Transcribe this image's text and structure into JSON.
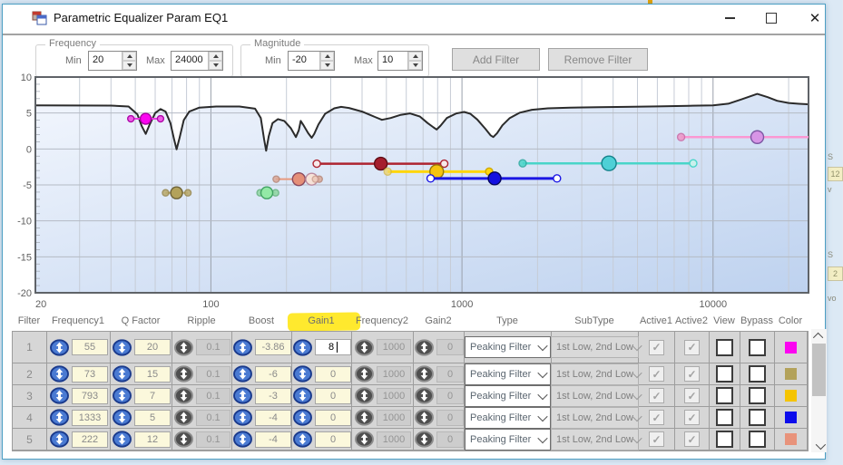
{
  "window": {
    "title": "Parametric Equalizer Param EQ1",
    "minimize_icon": "minimize",
    "maximize_icon": "maximize",
    "close_glyph": "✕"
  },
  "controls": {
    "frequency_group": {
      "label": "Frequency",
      "min_label": "Min",
      "min_value": "20",
      "max_label": "Max",
      "max_value": "24000"
    },
    "magnitude_group": {
      "label": "Magnitude",
      "min_label": "Min",
      "min_value": "-20",
      "max_label": "Max",
      "max_value": "10"
    },
    "add_filter_label": "Add Filter",
    "remove_filter_label": "Remove Filter"
  },
  "chart_data": {
    "type": "line",
    "x_scale": "log",
    "x_range": [
      20,
      24000
    ],
    "y_range": [
      -20,
      10
    ],
    "x_ticks": [
      20,
      100,
      1000,
      10000
    ],
    "y_ticks": [
      10,
      5,
      0,
      -5,
      -10,
      -15,
      -20
    ],
    "grid_minor_freqs": [
      30,
      40,
      50,
      60,
      70,
      80,
      90,
      200,
      300,
      400,
      500,
      600,
      700,
      800,
      900,
      2000,
      3000,
      4000,
      5000,
      6000,
      7000,
      8000,
      9000,
      20000
    ],
    "grid_major_freqs": [
      100,
      1000,
      10000
    ],
    "response_curve": [
      [
        20,
        6.05
      ],
      [
        40,
        6.03
      ],
      [
        47,
        5.9
      ],
      [
        51,
        4.8
      ],
      [
        53,
        3.2
      ],
      [
        55,
        2.1
      ],
      [
        57,
        3.4
      ],
      [
        60,
        5.0
      ],
      [
        63,
        5.55
      ],
      [
        66,
        5.2
      ],
      [
        69,
        3.6
      ],
      [
        71.5,
        1.2
      ],
      [
        73,
        -0.05
      ],
      [
        75,
        1.5
      ],
      [
        78,
        4.0
      ],
      [
        82,
        5.2
      ],
      [
        90,
        5.75
      ],
      [
        105,
        5.9
      ],
      [
        130,
        5.9
      ],
      [
        150,
        5.6
      ],
      [
        158,
        4.3
      ],
      [
        163,
        1.3
      ],
      [
        166,
        -0.25
      ],
      [
        170,
        1.8
      ],
      [
        176,
        3.6
      ],
      [
        185,
        4.15
      ],
      [
        196,
        3.9
      ],
      [
        208,
        2.9
      ],
      [
        218,
        1.65
      ],
      [
        224,
        2.6
      ],
      [
        228,
        3.9
      ],
      [
        233,
        3.4
      ],
      [
        244,
        2.2
      ],
      [
        252,
        1.55
      ],
      [
        258,
        2.1
      ],
      [
        268,
        3.4
      ],
      [
        285,
        4.9
      ],
      [
        310,
        5.65
      ],
      [
        330,
        5.85
      ],
      [
        355,
        5.7
      ],
      [
        400,
        5.2
      ],
      [
        450,
        4.45
      ],
      [
        480,
        4.05
      ],
      [
        520,
        4.3
      ],
      [
        570,
        4.75
      ],
      [
        620,
        4.95
      ],
      [
        680,
        4.5
      ],
      [
        730,
        3.6
      ],
      [
        770,
        3.0
      ],
      [
        793,
        2.7
      ],
      [
        820,
        3.2
      ],
      [
        870,
        4.3
      ],
      [
        950,
        4.95
      ],
      [
        1020,
        5.15
      ],
      [
        1080,
        4.9
      ],
      [
        1150,
        4.1
      ],
      [
        1240,
        2.8
      ],
      [
        1300,
        1.9
      ],
      [
        1333,
        1.65
      ],
      [
        1380,
        2.2
      ],
      [
        1450,
        3.3
      ],
      [
        1550,
        4.3
      ],
      [
        1700,
        5.05
      ],
      [
        1900,
        5.45
      ],
      [
        2200,
        5.65
      ],
      [
        2700,
        5.75
      ],
      [
        3500,
        5.8
      ],
      [
        4500,
        5.85
      ],
      [
        6000,
        5.92
      ],
      [
        8000,
        6.0
      ],
      [
        10000,
        6.05
      ],
      [
        11500,
        6.3
      ],
      [
        13000,
        6.9
      ],
      [
        15000,
        7.65
      ],
      [
        16500,
        7.2
      ],
      [
        18000,
        6.7
      ],
      [
        20000,
        6.4
      ],
      [
        22000,
        6.28
      ],
      [
        24000,
        6.2
      ]
    ],
    "filters": [
      {
        "name": "magenta-55hz",
        "line": "#e93ae3",
        "lw": 2,
        "db": 4.2,
        "f1": 48,
        "f2": 63,
        "points": [
          {
            "f": 48,
            "r": 3.5,
            "fill": "#ef5ce8",
            "stroke": "#ad09a8"
          },
          {
            "f": 63,
            "r": 3.5,
            "fill": "#ef5ce8",
            "stroke": "#ad09a8"
          },
          {
            "f": 55,
            "r": 6,
            "fill": "#fb05f0",
            "stroke": "#a800a0"
          }
        ]
      },
      {
        "name": "khaki-73hz",
        "line": "#bcac72",
        "lw": 2,
        "db": -6.1,
        "f1": 66,
        "f2": 81,
        "points": [
          {
            "f": 66,
            "r": 3.5,
            "fill": "#b9a96b",
            "stroke": "#95854a",
            "op": 0.85
          },
          {
            "f": 81,
            "r": 3.5,
            "fill": "#b9a96b",
            "stroke": "#95854a",
            "op": 0.85
          },
          {
            "f": 73,
            "r": 6.5,
            "fill": "#b3a25a",
            "stroke": "#6e6338"
          }
        ]
      },
      {
        "name": "green-167hz",
        "line": "#9fdcae",
        "lw": 2,
        "db": -6.1,
        "f1": 157,
        "f2": 181,
        "points": [
          {
            "f": 157,
            "r": 3.5,
            "fill": "#8fd6a2",
            "stroke": "#64b27c",
            "op": 0.85
          },
          {
            "f": 181,
            "r": 3.5,
            "fill": "#8fd6a2",
            "stroke": "#64b27c",
            "op": 0.85
          },
          {
            "f": 167,
            "r": 6.5,
            "fill": "#93e9a6",
            "stroke": "#41a263"
          }
        ]
      },
      {
        "name": "salmon-222hz",
        "line": "#e89a7f",
        "lw": 2,
        "db": -4.2,
        "f1": 182,
        "f2": 270,
        "points": [
          {
            "f": 182,
            "r": 3.5,
            "fill": "#dba491",
            "stroke": "#b4806e",
            "op": 0.8
          },
          {
            "f": 270,
            "r": 3.5,
            "fill": "#dba491",
            "stroke": "#b4806e",
            "op": 0.8
          },
          {
            "f": 224,
            "r": 7,
            "fill": "#e58f78",
            "stroke": "#8a4a5e"
          },
          {
            "f": 252,
            "r": 6.5,
            "fill": "#f6e2d8",
            "stroke": "#bb8ba0"
          },
          {
            "f": 261,
            "r": 3.5,
            "fill": "#ecc3b2",
            "stroke": "#c49583",
            "op": 0.7
          }
        ]
      },
      {
        "name": "darkred-475hz",
        "line": "#ae2430",
        "lw": 2.5,
        "db": -2.05,
        "f1": 264,
        "f2": 850,
        "points": [
          {
            "f": 264,
            "r": 4,
            "fill": "#f7eaea",
            "stroke": "#ae2430"
          },
          {
            "f": 850,
            "r": 4,
            "fill": "#f7eaea",
            "stroke": "#ae2430"
          },
          {
            "f": 475,
            "r": 7,
            "fill": "#a51e2d",
            "stroke": "#5f0e16"
          }
        ]
      },
      {
        "name": "gold-793hz",
        "line": "#ffd60d",
        "lw": 3,
        "db": -3.15,
        "f1": 506,
        "f2": 1283,
        "points": [
          {
            "f": 506,
            "r": 4,
            "fill": "#f0d465",
            "stroke": "#d4b63e",
            "op": 0.75
          },
          {
            "f": 1283,
            "r": 4,
            "fill": "#ffd60d",
            "stroke": "#cfa900"
          },
          {
            "f": 793,
            "r": 7.5,
            "fill": "#f5c411",
            "stroke": "#96790a"
          }
        ]
      },
      {
        "name": "blue-1333hz",
        "line": "#1b16e4",
        "lw": 3,
        "db": -4.1,
        "f1": 750,
        "f2": 2390,
        "points": [
          {
            "f": 750,
            "r": 4,
            "fill": "#ffffff",
            "stroke": "#1b16e4"
          },
          {
            "f": 2390,
            "r": 4,
            "fill": "#ffffff",
            "stroke": "#1b16e4"
          },
          {
            "f": 1349,
            "r": 7,
            "fill": "#1410e0",
            "stroke": "#05055e"
          }
        ]
      },
      {
        "name": "turquoise-3850hz",
        "line": "#49d5c9",
        "lw": 2.5,
        "db": -2.0,
        "f1": 1745,
        "f2": 8340,
        "points": [
          {
            "f": 1745,
            "r": 4,
            "fill": "#49d5c9",
            "stroke": "#2aa89d",
            "op": 0.85
          },
          {
            "f": 8340,
            "r": 4,
            "fill": "#c9f0ec",
            "stroke": "#49d5c9"
          },
          {
            "f": 3850,
            "r": 8,
            "fill": "#4ed0d6",
            "stroke": "#15828c"
          }
        ]
      },
      {
        "name": "orchid-15khz",
        "line": "#fb98d2",
        "lw": 2.5,
        "db": 1.65,
        "f1": 7460,
        "f2": 24000,
        "points": [
          {
            "f": 7460,
            "r": 4,
            "fill": "#ee97c8",
            "stroke": "#cb6ba6",
            "op": 0.85
          },
          {
            "f": 15000,
            "r": 7,
            "fill": "#d795e6",
            "stroke": "#7e58a4"
          }
        ]
      }
    ]
  },
  "table": {
    "headers": [
      "Filter",
      "Frequency1",
      "Q Factor",
      "Ripple",
      "Boost",
      "Gain1",
      "Frequency2",
      "Gain2",
      "Type",
      "SubType",
      "Active1",
      "Active2",
      "View",
      "Bypass",
      "Color"
    ],
    "highlighted_header": "Gain1",
    "rows": [
      {
        "n": "1",
        "frequency1": "55",
        "q_factor": "20",
        "ripple": "0.1",
        "boost": "-3.86",
        "gain1": "8",
        "gain1_editing": true,
        "frequency2": "1000",
        "gain2": "0",
        "type": "Peaking Filter",
        "subtype": "1st Low, 2nd Low",
        "active1": true,
        "active2": true,
        "view": false,
        "bypass": false,
        "color": "#fb05f0"
      },
      {
        "n": "2",
        "frequency1": "73",
        "q_factor": "15",
        "ripple": "0.1",
        "boost": "-6",
        "gain1": "0",
        "gain1_editing": false,
        "frequency2": "1000",
        "gain2": "0",
        "type": "Peaking Filter",
        "subtype": "1st Low, 2nd Low",
        "active1": true,
        "active2": true,
        "view": false,
        "bypass": false,
        "color": "#b3a25a"
      },
      {
        "n": "3",
        "frequency1": "793",
        "q_factor": "7",
        "ripple": "0.1",
        "boost": "-3",
        "gain1": "0",
        "gain1_editing": false,
        "frequency2": "1000",
        "gain2": "0",
        "type": "Peaking Filter",
        "subtype": "1st Low, 2nd Low",
        "active1": true,
        "active2": true,
        "view": false,
        "bypass": false,
        "color": "#f5c400"
      },
      {
        "n": "4",
        "frequency1": "1333",
        "q_factor": "5",
        "ripple": "0.1",
        "boost": "-4",
        "gain1": "0",
        "gain1_editing": false,
        "frequency2": "1000",
        "gain2": "0",
        "type": "Peaking Filter",
        "subtype": "1st Low, 2nd Low",
        "active1": true,
        "active2": true,
        "view": false,
        "bypass": false,
        "color": "#0c0cec"
      },
      {
        "n": "5",
        "frequency1": "222",
        "q_factor": "12",
        "ripple": "0.1",
        "boost": "-4",
        "gain1": "0",
        "gain1_editing": false,
        "frequency2": "1000",
        "gain2": "0",
        "type": "Peaking Filter",
        "subtype": "1st Low, 2nd Low",
        "active1": true,
        "active2": true,
        "view": false,
        "bypass": false,
        "color": "#e8937b"
      }
    ]
  },
  "background": {
    "fragments": [
      {
        "text": "S",
        "y": 168,
        "box": false
      },
      {
        "text": "12",
        "y": 184,
        "box": true
      },
      {
        "text": "v",
        "y": 204,
        "box": false
      },
      {
        "text": "S",
        "y": 276,
        "box": false
      },
      {
        "text": "2",
        "y": 294,
        "box": true
      },
      {
        "text": "vo",
        "y": 324,
        "box": false
      }
    ]
  }
}
